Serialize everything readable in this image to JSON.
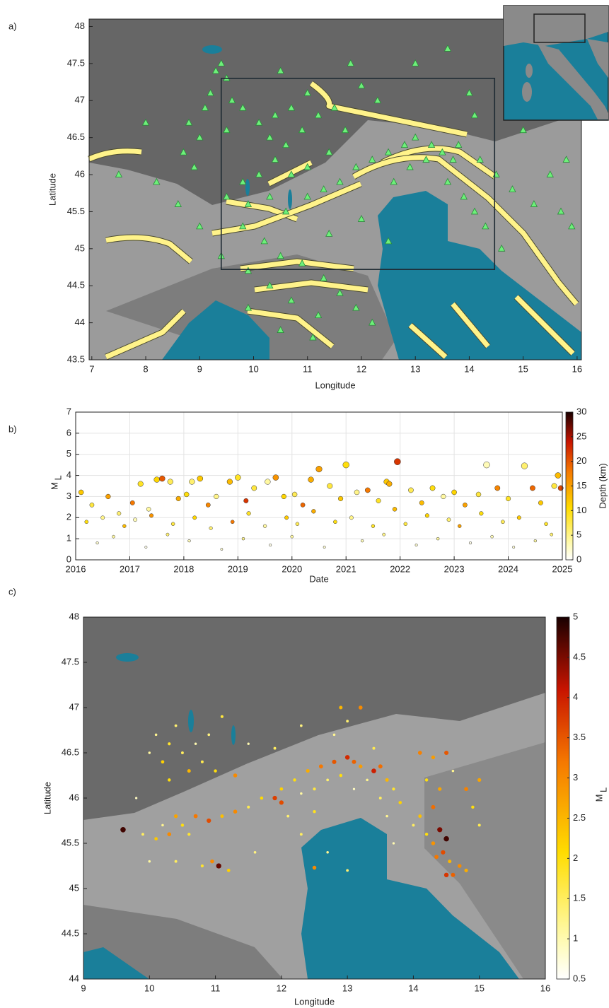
{
  "chart_data": [
    {
      "type": "map-scatter",
      "panel_label": "a)",
      "xlabel": "Longitude",
      "ylabel": "Latitude",
      "xlim": [
        6.95,
        16.08
      ],
      "ylim": [
        43.5,
        48.1
      ],
      "xticks": [
        7,
        8,
        9,
        10,
        11,
        12,
        13,
        14,
        15,
        16
      ],
      "yticks": [
        43.5,
        44,
        44.5,
        45,
        45.5,
        46,
        46.5,
        47,
        47.5,
        48
      ],
      "region": {
        "x": [
          9.4,
          14.47
        ],
        "y": [
          44.72,
          47.3
        ]
      },
      "marker": "triangle",
      "color": "#6ef07a",
      "x": [
        9.3,
        9.4,
        9.5,
        9.2,
        9.6,
        9.1,
        8.8,
        9.0,
        8.7,
        9.5,
        9.8,
        10.1,
        10.4,
        10.7,
        10.3,
        10.6,
        10.9,
        11.2,
        11.5,
        11.7,
        11.4,
        11.0,
        10.7,
        10.4,
        10.1,
        9.8,
        9.5,
        9.9,
        10.3,
        10.6,
        11.0,
        11.3,
        11.6,
        11.9,
        12.2,
        12.5,
        12.8,
        13.0,
        13.3,
        13.5,
        13.7,
        13.2,
        12.9,
        12.6,
        13.6,
        13.9,
        14.1,
        14.3,
        14.6,
        13.8,
        14.2,
        14.5,
        14.8,
        15.2,
        15.5,
        15.8,
        15.9,
        15.0,
        14.1,
        13.6,
        13.0,
        12.3,
        12.0,
        11.8,
        11.0,
        10.5,
        9.8,
        10.2,
        10.5,
        10.9,
        11.3,
        11.6,
        11.9,
        10.7,
        10.3,
        9.9,
        9.4,
        9.0,
        8.6,
        8.2,
        8.9,
        11.2,
        12.2,
        11.4,
        12.0,
        12.5,
        11.1,
        10.5,
        9.9,
        8.0,
        7.5,
        14.0,
        15.7
      ],
      "y": [
        47.4,
        47.5,
        47.3,
        47.1,
        47.0,
        46.9,
        46.7,
        46.5,
        46.3,
        46.6,
        46.9,
        46.7,
        46.8,
        46.9,
        46.5,
        46.4,
        46.6,
        46.8,
        46.9,
        46.6,
        46.3,
        46.1,
        46.0,
        46.2,
        46.0,
        45.9,
        45.7,
        45.6,
        45.7,
        45.5,
        45.7,
        45.8,
        45.9,
        46.1,
        46.2,
        46.3,
        46.4,
        46.5,
        46.4,
        46.3,
        46.2,
        46.2,
        46.1,
        45.9,
        45.9,
        45.7,
        45.5,
        45.3,
        45.0,
        46.4,
        46.2,
        46.0,
        45.8,
        45.6,
        46.0,
        46.2,
        45.3,
        46.6,
        46.8,
        47.7,
        47.5,
        47.0,
        47.2,
        47.5,
        47.1,
        47.4,
        45.3,
        45.1,
        44.9,
        44.8,
        44.6,
        44.4,
        44.2,
        44.3,
        44.5,
        44.7,
        44.9,
        45.3,
        45.6,
        45.9,
        46.1,
        44.1,
        44.0,
        45.2,
        45.4,
        45.1,
        43.8,
        43.9,
        44.2,
        46.7,
        46.0,
        47.1,
        45.5
      ]
    },
    {
      "type": "scatter",
      "panel_label": "b)",
      "xlabel": "Date",
      "ylabel": "M",
      "ylabel_subscript": "L",
      "xlim": [
        2016,
        2025
      ],
      "ylim": [
        0,
        7
      ],
      "xticks": [
        2016,
        2017,
        2018,
        2019,
        2020,
        2021,
        2022,
        2023,
        2024,
        2025
      ],
      "yticks": [
        0,
        1,
        2,
        3,
        4,
        5,
        6,
        7
      ],
      "grid": true,
      "colorbar": {
        "label": "Depth (km)",
        "clim": [
          0,
          30
        ],
        "ticks": [
          0,
          5,
          10,
          15,
          20,
          25,
          30
        ],
        "colormap": "hot-reversed"
      },
      "x": [
        2016.1,
        2016.3,
        2016.6,
        2016.8,
        2017.05,
        2017.2,
        2017.35,
        2017.5,
        2017.6,
        2017.75,
        2017.9,
        2018.05,
        2018.15,
        2018.3,
        2018.45,
        2018.6,
        2018.85,
        2019.0,
        2019.15,
        2019.3,
        2019.55,
        2019.7,
        2019.85,
        2020.05,
        2020.2,
        2020.35,
        2020.5,
        2020.7,
        2020.9,
        2021.0,
        2021.2,
        2021.4,
        2021.6,
        2021.75,
        2021.8,
        2021.95,
        2022.2,
        2022.4,
        2022.6,
        2022.8,
        2023.0,
        2023.2,
        2023.45,
        2023.6,
        2023.8,
        2024.0,
        2024.3,
        2024.45,
        2024.6,
        2024.85,
        2024.92,
        2024.97,
        2016.2,
        2016.5,
        2016.9,
        2017.1,
        2017.4,
        2017.8,
        2018.2,
        2018.5,
        2018.9,
        2019.2,
        2019.5,
        2019.9,
        2020.1,
        2020.4,
        2020.8,
        2021.1,
        2021.5,
        2021.9,
        2022.1,
        2022.5,
        2022.9,
        2023.1,
        2023.5,
        2023.9,
        2024.2,
        2024.7,
        2016.4,
        2016.7,
        2017.3,
        2017.7,
        2018.1,
        2018.7,
        2019.1,
        2019.6,
        2020.0,
        2020.6,
        2021.3,
        2021.7,
        2022.3,
        2022.7,
        2023.3,
        2023.7,
        2024.1,
        2024.5,
        2024.8
      ],
      "y": [
        3.2,
        2.6,
        3.0,
        2.2,
        2.7,
        3.6,
        2.4,
        3.8,
        3.85,
        3.7,
        2.9,
        3.1,
        3.7,
        3.85,
        2.6,
        3.0,
        3.7,
        3.9,
        2.8,
        3.4,
        3.7,
        3.9,
        3.0,
        3.1,
        2.6,
        3.8,
        4.3,
        3.5,
        2.9,
        4.5,
        3.2,
        3.3,
        2.8,
        3.7,
        3.6,
        4.65,
        3.3,
        2.7,
        3.4,
        3.0,
        3.2,
        2.6,
        3.1,
        4.5,
        3.4,
        2.9,
        4.45,
        3.4,
        2.7,
        3.5,
        4.0,
        3.4,
        1.8,
        2.0,
        1.6,
        1.9,
        2.1,
        1.7,
        2.0,
        1.5,
        1.8,
        2.2,
        1.6,
        2.0,
        1.7,
        2.3,
        1.8,
        2.0,
        1.6,
        2.4,
        1.7,
        2.1,
        1.9,
        1.6,
        2.2,
        1.8,
        2.0,
        1.7,
        0.8,
        1.1,
        0.6,
        1.2,
        0.9,
        0.5,
        1.0,
        0.7,
        1.1,
        0.6,
        0.9,
        1.2,
        0.7,
        1.0,
        0.8,
        1.1,
        0.6,
        0.9,
        1.2
      ],
      "color_values": [
        12,
        8,
        15,
        6,
        18,
        9,
        4,
        11,
        20,
        7,
        14,
        10,
        6,
        12,
        17,
        5,
        13,
        9,
        22,
        8,
        4,
        16,
        11,
        7,
        19,
        14,
        15,
        8,
        12,
        10,
        5,
        18,
        9,
        12,
        14,
        22,
        7,
        13,
        10,
        4,
        11,
        15,
        8,
        3,
        17,
        9,
        6,
        19,
        12,
        8,
        13,
        21,
        10,
        5,
        13,
        3,
        16,
        8,
        11,
        6,
        18,
        9,
        4,
        12,
        7,
        14,
        10,
        5,
        9,
        13,
        8,
        11,
        6,
        15,
        10,
        7,
        12,
        9,
        2,
        4,
        1,
        6,
        3,
        2,
        5,
        1,
        4,
        2,
        3,
        5,
        2,
        4,
        1,
        3,
        2,
        4,
        6
      ]
    },
    {
      "type": "map-scatter",
      "panel_label": "c)",
      "xlabel": "Longitude",
      "ylabel": "Latitude",
      "xlim": [
        9,
        16
      ],
      "ylim": [
        44,
        48
      ],
      "xticks": [
        9,
        10,
        11,
        12,
        13,
        14,
        15,
        16
      ],
      "yticks": [
        44,
        44.5,
        45,
        45.5,
        46,
        46.5,
        47,
        47.5,
        48
      ],
      "marker": "circle",
      "colorbar": {
        "label": "M",
        "label_subscript": "L",
        "clim": [
          0.5,
          5
        ],
        "ticks": [
          0.5,
          1,
          1.5,
          2,
          2.5,
          3,
          3.5,
          4,
          4.5,
          5
        ],
        "colormap": "hot-reversed"
      },
      "x": [
        10.1,
        10.3,
        10.5,
        10.2,
        10.7,
        10.4,
        10.6,
        10.8,
        10.0,
        10.3,
        10.9,
        11.1,
        9.9,
        10.1,
        10.3,
        10.5,
        10.7,
        10.9,
        11.1,
        11.3,
        10.6,
        10.4,
        10.2,
        11.5,
        11.7,
        11.9,
        12.0,
        9.6,
        11.05,
        10.95,
        10.8,
        11.2,
        10.4,
        12.5,
        12.2,
        12.4,
        12.6,
        12.8,
        13.0,
        13.1,
        13.2,
        13.4,
        13.5,
        13.6,
        13.7,
        13.3,
        12.9,
        12.7,
        12.5,
        12.3,
        13.1,
        13.5,
        13.8,
        12.9,
        12.3,
        11.5,
        11.9,
        12.8,
        13.4,
        11.3,
        11.0,
        12.0,
        12.1,
        12.5,
        14.1,
        14.3,
        14.5,
        14.2,
        14.4,
        14.3,
        14.1,
        14.2,
        14.3,
        14.45,
        14.5,
        14.4,
        14.35,
        14.55,
        14.6,
        14.7,
        14.8,
        14.5,
        14.0,
        14.6,
        14.9,
        15.0,
        14.8,
        15.0,
        13.6,
        13.7,
        12.3,
        12.7,
        13.0,
        9.8,
        10.0,
        11.6,
        13.2,
        13.0
      ],
      "y": [
        46.7,
        46.6,
        46.5,
        46.4,
        46.6,
        46.8,
        46.3,
        46.4,
        46.5,
        46.2,
        46.7,
        46.9,
        45.6,
        45.55,
        45.6,
        45.7,
        45.8,
        45.75,
        45.8,
        45.85,
        45.6,
        45.8,
        45.7,
        45.9,
        46.0,
        46.0,
        46.1,
        45.65,
        45.25,
        45.3,
        45.25,
        45.2,
        45.3,
        45.23,
        46.2,
        46.3,
        46.35,
        46.4,
        46.45,
        46.4,
        46.35,
        46.3,
        46.35,
        46.2,
        46.1,
        46.2,
        46.25,
        46.2,
        46.1,
        46.05,
        46.1,
        46.0,
        45.95,
        47.0,
        46.8,
        46.6,
        46.55,
        46.7,
        46.55,
        46.25,
        46.3,
        45.95,
        45.8,
        45.85,
        46.5,
        46.45,
        46.5,
        46.2,
        46.1,
        45.9,
        45.8,
        45.6,
        45.5,
        45.4,
        45.55,
        45.65,
        45.35,
        45.3,
        45.15,
        45.25,
        45.2,
        45.15,
        45.7,
        46.3,
        45.9,
        46.2,
        46.1,
        45.7,
        45.8,
        45.5,
        45.6,
        45.4,
        45.2,
        46.0,
        45.3,
        45.4,
        47.0,
        46.85
      ],
      "color_values": [
        1.2,
        1.8,
        1.5,
        2.2,
        1.0,
        1.4,
        2.5,
        1.6,
        1.1,
        2.0,
        1.3,
        1.7,
        1.5,
        2.3,
        3.0,
        2.0,
        3.2,
        3.6,
        2.4,
        3.0,
        1.8,
        2.7,
        1.2,
        1.6,
        2.1,
        3.7,
        2.2,
        4.8,
        4.6,
        3.0,
        1.8,
        2.2,
        1.5,
        3.0,
        2.0,
        2.6,
        3.2,
        3.5,
        3.9,
        3.4,
        2.8,
        4.0,
        3.3,
        2.5,
        1.8,
        1.2,
        2.0,
        1.4,
        1.7,
        1.1,
        0.9,
        1.5,
        2.2,
        2.5,
        1.3,
        1.0,
        1.5,
        1.2,
        1.6,
        3.0,
        2.0,
        3.6,
        1.4,
        1.9,
        3.1,
        2.8,
        3.5,
        2.0,
        2.7,
        3.3,
        2.4,
        2.0,
        2.9,
        3.6,
        4.8,
        4.5,
        3.2,
        2.5,
        3.4,
        3.0,
        2.6,
        3.8,
        1.5,
        1.2,
        2.0,
        2.7,
        3.1,
        1.6,
        1.2,
        1.0,
        1.5,
        1.2,
        1.4,
        0.9,
        1.1,
        1.3,
        3.0,
        1.4
      ]
    }
  ]
}
